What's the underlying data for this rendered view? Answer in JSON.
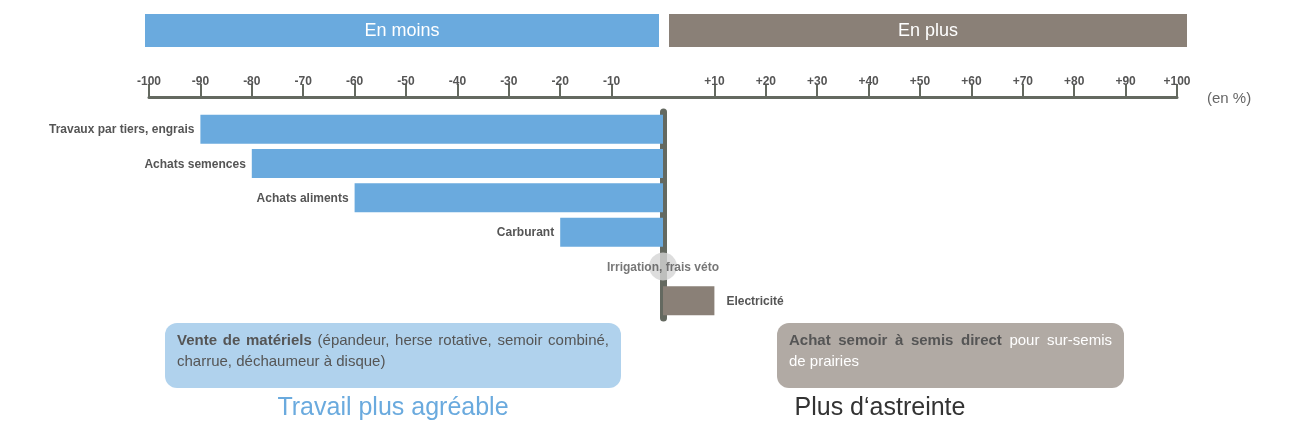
{
  "chart_data": {
    "type": "bar",
    "orientation": "horizontal",
    "xlabel": "(en %)",
    "categories": [
      "Travaux par tiers, engrais",
      "Achats semences",
      "Achats aliments",
      "Carburant",
      "Irrigation, frais véto",
      "Electricité"
    ],
    "series": [
      {
        "values": [
          -90,
          -80,
          -60,
          -20,
          null,
          10
        ],
        "colors": [
          "#6aaade",
          "#6aaade",
          "#6aaade",
          "#6aaade",
          null,
          "#8a8077"
        ]
      },
      {
        "type": "scatter",
        "color": "#d4d4d4",
        "values": [
          null,
          null,
          null,
          null,
          0,
          null
        ]
      }
    ],
    "marker": "circle",
    "xlim": [
      -100,
      100
    ],
    "xticks": [
      -100,
      -90,
      -80,
      -70,
      -60,
      -50,
      -40,
      -30,
      -20,
      -10,
      {
        "value": 10,
        "label": "+10"
      },
      {
        "value": 20,
        "label": "+20"
      },
      {
        "value": 30,
        "label": "+30"
      },
      {
        "value": 40,
        "label": "+40"
      },
      {
        "value": 50,
        "label": "+50"
      },
      {
        "value": 60,
        "label": "+60"
      },
      {
        "value": 70,
        "label": "+70"
      },
      {
        "value": 80,
        "label": "+80"
      },
      {
        "value": 90,
        "label": "+90"
      },
      {
        "value": 100,
        "label": "+100"
      }
    ],
    "annotations": [
      "En moins",
      "En plus",
      "Vente de matériels",
      "(épandeur, herse rotative, semoir combiné, charrue, déchaumeur à disque)",
      "Achat semoir à semis direct",
      "pour sur-semis de prairies",
      "Travail plus agréable",
      "Plus d‘astreinte"
    ],
    "grid": false
  }
}
